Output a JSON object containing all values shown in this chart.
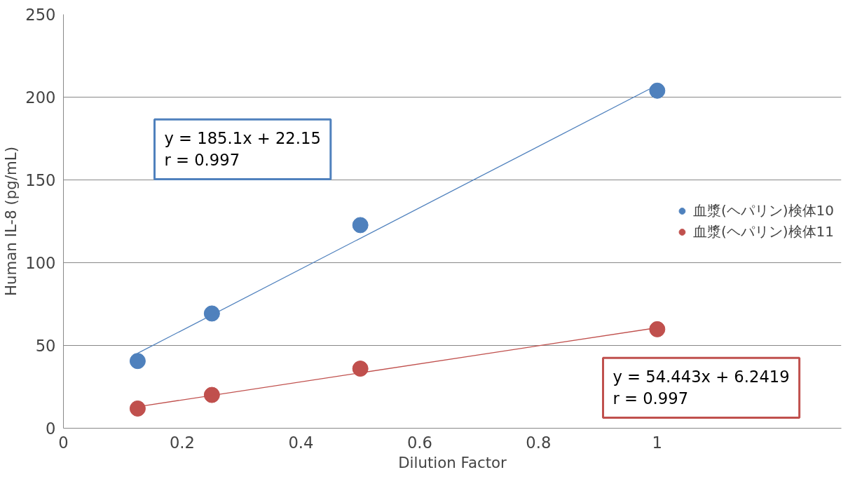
{
  "chart_data": {
    "type": "scatter",
    "xlabel": "Dilution Factor",
    "ylabel": "Human IL-8 (pg/mL)",
    "xlim": [
      0,
      1.31
    ],
    "xticks": [
      0,
      0.2,
      0.4,
      0.6,
      0.8,
      1
    ],
    "ylim": [
      0,
      250
    ],
    "yticks": [
      0,
      50,
      100,
      150,
      200,
      250
    ],
    "grid": "y",
    "legend": "right",
    "series": [
      {
        "name": "血漿(ヘパリン)検体10",
        "color": "#4f81bd",
        "marker": "circle",
        "x": [
          0.125,
          0.25,
          0.5,
          1
        ],
        "values": [
          40.6,
          69.3,
          122.7,
          203.9
        ]
      },
      {
        "name": "血漿(ヘパリン)検体11",
        "color": "#c0504d",
        "marker": "circle",
        "x": [
          0.125,
          0.25,
          0.5,
          1
        ],
        "values": [
          11.9,
          20.1,
          36.0,
          59.8
        ]
      },
      {
        "type": "line",
        "color": "#4f81bd",
        "x": [
          0.125,
          1
        ],
        "values": [
          45.3,
          207.3
        ]
      },
      {
        "type": "line",
        "color": "#c0504d",
        "x": [
          0.125,
          1
        ],
        "values": [
          13.0,
          60.7
        ]
      }
    ],
    "annotations": [
      "y = 185.1x + 22.15\nr = 0.997",
      "y = 54.443x + 6.2419\nr = 0.997"
    ]
  }
}
